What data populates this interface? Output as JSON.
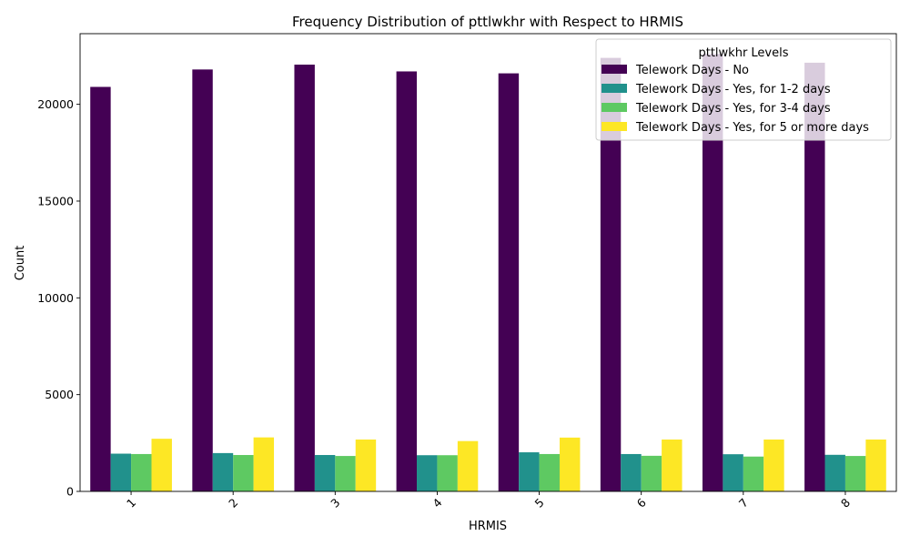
{
  "chart_data": {
    "type": "bar",
    "title": "Frequency Distribution of pttlwkhr with Respect to HRMIS",
    "xlabel": "HRMIS",
    "ylabel": "Count",
    "categories": [
      "1",
      "2",
      "3",
      "4",
      "5",
      "6",
      "7",
      "8"
    ],
    "ylim": [
      0,
      23650
    ],
    "yticks": [
      0,
      5000,
      10000,
      15000,
      20000
    ],
    "ytick_labels": [
      "0",
      "5000",
      "10000",
      "15000",
      "20000"
    ],
    "grid": false,
    "legend": {
      "title": "pttlwkhr Levels",
      "placement": "top-right"
    },
    "series": [
      {
        "name": "Telework Days - No",
        "color": "#440154",
        "values": [
          20900,
          21800,
          22050,
          21700,
          21600,
          22400,
          22600,
          22150
        ]
      },
      {
        "name": "Telework Days - Yes, for 1-2 days",
        "color": "#21918c",
        "values": [
          1950,
          1980,
          1880,
          1870,
          2020,
          1930,
          1920,
          1890
        ]
      },
      {
        "name": "Telework Days - Yes, for 3-4 days",
        "color": "#5ec962",
        "values": [
          1930,
          1880,
          1830,
          1870,
          1930,
          1840,
          1800,
          1830
        ]
      },
      {
        "name": "Telework Days - Yes, for 5 or more days",
        "color": "#fde725",
        "values": [
          2720,
          2790,
          2680,
          2600,
          2780,
          2680,
          2680,
          2680
        ]
      }
    ]
  }
}
